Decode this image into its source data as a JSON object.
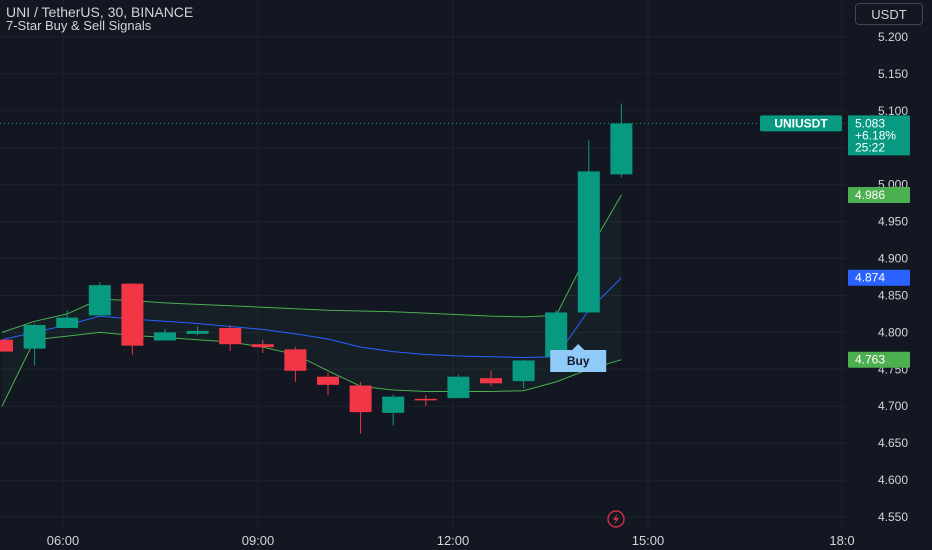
{
  "header": {
    "symbol": "UNI / TetherUS, 30, BINANCE",
    "indicator": "7-Star Buy & Sell Signals"
  },
  "toolbar": {
    "currency": "USDT"
  },
  "colors": {
    "background": "#131722",
    "grid": "#1e222d",
    "up": "#089981",
    "down": "#f23645",
    "upper_band": "#4caf50",
    "lower_band": "#4caf50",
    "mid_line": "#2962ff",
    "buy_label": "#90caf9",
    "axis_text": "#d1d4dc"
  },
  "icons": {
    "replay": "lightning-circle-icon"
  },
  "chart_data": {
    "type": "candlestick",
    "x_ticks": [
      "06:00",
      "09:00",
      "12:00",
      "15:00",
      "18:0"
    ],
    "y_ticks": [
      "5.200",
      "5.150",
      "5.100",
      "5.050",
      "5.000",
      "4.950",
      "4.900",
      "4.850",
      "4.800",
      "4.750",
      "4.700",
      "4.650",
      "4.600",
      "4.550"
    ],
    "ylim": [
      4.538,
      5.232
    ],
    "candles": [
      {
        "o": 4.79,
        "h": 4.79,
        "l": 4.774,
        "c": 4.774
      },
      {
        "o": 4.778,
        "h": 4.812,
        "l": 4.755,
        "c": 4.81
      },
      {
        "o": 4.806,
        "h": 4.83,
        "l": 4.806,
        "c": 4.82
      },
      {
        "o": 4.823,
        "h": 4.868,
        "l": 4.823,
        "c": 4.864
      },
      {
        "o": 4.866,
        "h": 4.866,
        "l": 4.77,
        "c": 4.782
      },
      {
        "o": 4.789,
        "h": 4.805,
        "l": 4.789,
        "c": 4.8
      },
      {
        "o": 4.798,
        "h": 4.808,
        "l": 4.796,
        "c": 4.802
      },
      {
        "o": 4.806,
        "h": 4.81,
        "l": 4.775,
        "c": 4.784
      },
      {
        "o": 4.784,
        "h": 4.79,
        "l": 4.772,
        "c": 4.78
      },
      {
        "o": 4.777,
        "h": 4.78,
        "l": 4.733,
        "c": 4.748
      },
      {
        "o": 4.74,
        "h": 4.745,
        "l": 4.715,
        "c": 4.729
      },
      {
        "o": 4.728,
        "h": 4.733,
        "l": 4.663,
        "c": 4.692
      },
      {
        "o": 4.691,
        "h": 4.716,
        "l": 4.674,
        "c": 4.713
      },
      {
        "o": 4.71,
        "h": 4.715,
        "l": 4.7,
        "c": 4.709
      },
      {
        "o": 4.711,
        "h": 4.743,
        "l": 4.711,
        "c": 4.74
      },
      {
        "o": 4.738,
        "h": 4.748,
        "l": 4.727,
        "c": 4.731
      },
      {
        "o": 4.734,
        "h": 4.763,
        "l": 4.724,
        "c": 4.762
      },
      {
        "o": 4.767,
        "h": 4.83,
        "l": 4.752,
        "c": 4.827
      },
      {
        "o": 4.827,
        "h": 5.06,
        "l": 4.827,
        "c": 5.018
      },
      {
        "o": 5.014,
        "h": 5.11,
        "l": 5.01,
        "c": 5.083
      }
    ],
    "upper_band": [
      4.8,
      4.815,
      4.825,
      4.845,
      4.843,
      4.84,
      4.838,
      4.836,
      4.834,
      4.832,
      4.83,
      4.829,
      4.828,
      4.826,
      4.824,
      4.822,
      4.821,
      4.823,
      4.91,
      4.986
    ],
    "mid_line": [
      4.79,
      4.8,
      4.81,
      4.822,
      4.818,
      4.815,
      4.812,
      4.808,
      4.804,
      4.798,
      4.791,
      4.78,
      4.774,
      4.77,
      4.768,
      4.767,
      4.766,
      4.767,
      4.83,
      4.874
    ],
    "lower_band": [
      4.7,
      4.79,
      4.795,
      4.8,
      4.796,
      4.793,
      4.79,
      4.787,
      4.78,
      4.77,
      4.748,
      4.727,
      4.722,
      4.72,
      4.72,
      4.72,
      4.721,
      4.733,
      4.75,
      4.763
    ],
    "signals": [
      {
        "index": 17,
        "label": "Buy",
        "price": 4.768
      }
    ],
    "price_labels": [
      {
        "price": 5.083,
        "lines": [
          "5.083",
          "+6.18%",
          "25:22"
        ],
        "tag": "UNIUSDT",
        "color": "#089981"
      },
      {
        "price": 4.986,
        "lines": [
          "4.986"
        ],
        "color": "#4caf50"
      },
      {
        "price": 4.874,
        "lines": [
          "4.874"
        ],
        "color": "#2962ff"
      },
      {
        "price": 4.763,
        "lines": [
          "4.763"
        ],
        "color": "#4caf50"
      }
    ]
  }
}
